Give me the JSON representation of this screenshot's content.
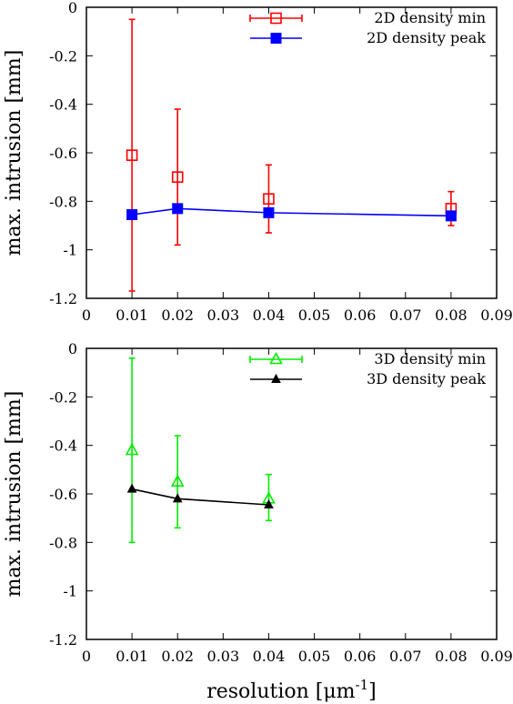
{
  "chart_data": [
    {
      "type": "line",
      "ylabel": "max. intrusion [mm]",
      "xlim": [
        0,
        0.09
      ],
      "ylim": [
        -1.2,
        0
      ],
      "xticks": [
        "0",
        "0.01",
        "0.02",
        "0.03",
        "0.04",
        "0.05",
        "0.06",
        "0.07",
        "0.08",
        "0.09"
      ],
      "yticks": [
        "0",
        "-0.2",
        "-0.4",
        "-0.6",
        "-0.8",
        "-1",
        "-1.2"
      ],
      "legend_position": "top-right",
      "series": [
        {
          "name": "2D density min",
          "color": "#ff0000",
          "marker": "open-square",
          "line": false,
          "x": [
            0.01,
            0.02,
            0.04,
            0.08
          ],
          "y": [
            -0.61,
            -0.7,
            -0.79,
            -0.83
          ],
          "err_low": [
            -1.17,
            -0.98,
            -0.93,
            -0.9
          ],
          "err_high": [
            -0.05,
            -0.42,
            -0.65,
            -0.76
          ]
        },
        {
          "name": "2D density peak",
          "color": "#0000ff",
          "marker": "filled-square",
          "line": true,
          "x": [
            0.01,
            0.02,
            0.04,
            0.08
          ],
          "y": [
            -0.855,
            -0.83,
            -0.847,
            -0.86
          ]
        }
      ]
    },
    {
      "type": "line",
      "xlabel_text": "resolution [μm",
      "xlabel_sup": "-1",
      "xlabel_end": "]",
      "ylabel": "max. intrusion [mm]",
      "xlim": [
        0,
        0.09
      ],
      "ylim": [
        -1.2,
        0
      ],
      "xticks": [
        "0",
        "0.01",
        "0.02",
        "0.03",
        "0.04",
        "0.05",
        "0.06",
        "0.07",
        "0.08",
        "0.09"
      ],
      "yticks": [
        "0",
        "-0.2",
        "-0.4",
        "-0.6",
        "-0.8",
        "-1",
        "-1.2"
      ],
      "legend_position": "top-right",
      "series": [
        {
          "name": "3D density min",
          "color": "#00ee00",
          "marker": "open-triangle",
          "line": false,
          "x": [
            0.01,
            0.02,
            0.04
          ],
          "y": [
            -0.42,
            -0.55,
            -0.62
          ],
          "err_low": [
            -0.8,
            -0.74,
            -0.71
          ],
          "err_high": [
            -0.04,
            -0.36,
            -0.52
          ]
        },
        {
          "name": "3D density peak",
          "color": "#000000",
          "marker": "filled-triangle",
          "line": true,
          "x": [
            0.01,
            0.02,
            0.04
          ],
          "y": [
            -0.58,
            -0.62,
            -0.645
          ]
        }
      ]
    }
  ]
}
